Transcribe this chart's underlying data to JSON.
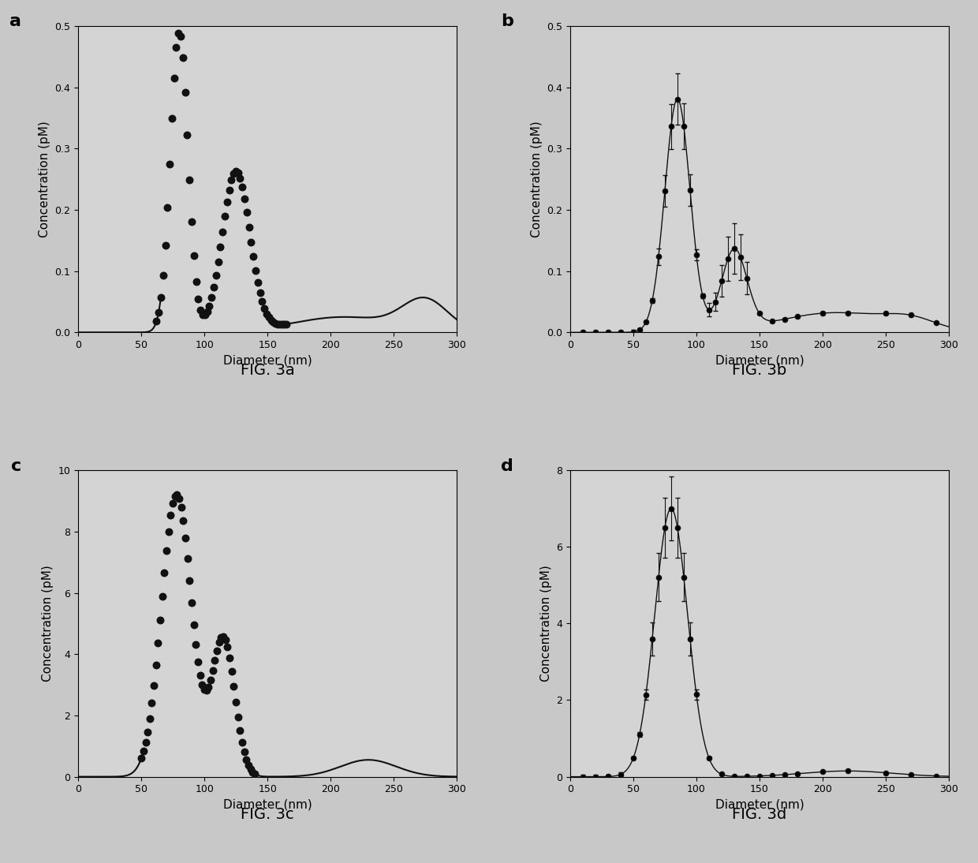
{
  "fig_width": 12.4,
  "fig_height": 10.94,
  "background_color": "#c8c8c8",
  "panel_bg": "#d4d4d4",
  "fig_labels": [
    "FIG. 3a",
    "FIG. 3b",
    "FIG. 3c",
    "FIG. 3d"
  ],
  "xlabel": "Diameter (nm)",
  "ylabel": "Concentration (pM)",
  "xlim": [
    0,
    300
  ],
  "panel_a": {
    "ylim": [
      0,
      0.5
    ],
    "yticks": [
      0.0,
      0.1,
      0.2,
      0.3,
      0.4,
      0.5
    ]
  },
  "panel_b": {
    "ylim": [
      0,
      0.5
    ],
    "yticks": [
      0.0,
      0.1,
      0.2,
      0.3,
      0.4,
      0.5
    ]
  },
  "panel_c": {
    "ylim": [
      0,
      10
    ],
    "yticks": [
      0,
      2,
      4,
      6,
      8,
      10
    ]
  },
  "panel_d": {
    "ylim": [
      0,
      8
    ],
    "yticks": [
      0,
      2,
      4,
      6,
      8
    ]
  },
  "dot_color": "#111111",
  "line_color": "#111111",
  "font_size_axis": 11,
  "font_size_panel_label": 16,
  "font_size_fig_label": 14,
  "font_size_tick": 9
}
